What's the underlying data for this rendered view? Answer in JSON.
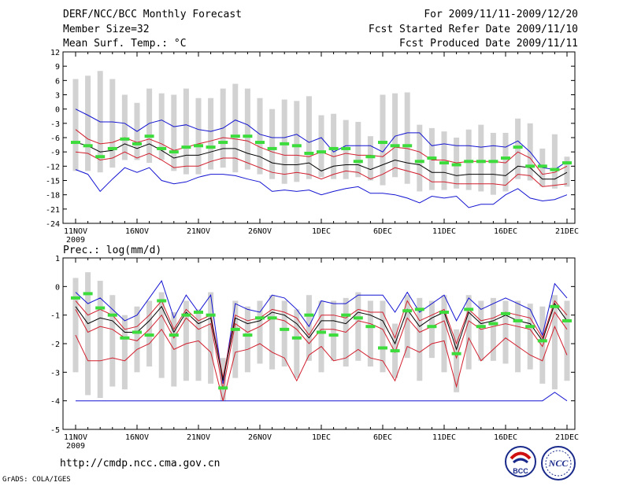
{
  "header": {
    "title": "DERF/NCC/BCC Monthly Forecast",
    "member_size": "Member Size=32",
    "variable": "Mean Surf. Temp.: °C",
    "period": "For 2009/11/11-2009/12/20",
    "start_date": "Fcst Started Refer Date 2009/11/10",
    "produced_date": "Fcst Produced Date 2009/11/11"
  },
  "footer": {
    "url": "http://cmdp.ncc.cma.gov.cn",
    "credit": "GrADS: COLA/IGES",
    "logo_bcc": "BCC",
    "logo_ncc": "NCC"
  },
  "colors": {
    "box": "#d2d2d2",
    "mean": "#000000",
    "inner": "#d21e2d",
    "outer": "#1414d2",
    "obs": "#3cdc3c"
  },
  "chart_data": [
    {
      "type": "box-line",
      "name": "Mean Surface Temperature",
      "title": "Mean Surf. Temp.: °C",
      "ylabel": "°C",
      "ylim": [
        -24,
        12
      ],
      "yticks": [
        "12",
        "9",
        "6",
        "3",
        "0",
        "-3",
        "-6",
        "-9",
        "-12",
        "-15",
        "-18",
        "-21",
        "-24"
      ],
      "xtick_labels": [
        "11NOV",
        "16NOV",
        "21NOV",
        "26NOV",
        "1DEC",
        "6DEC",
        "11DEC",
        "16DEC",
        "21DEC"
      ],
      "xtick_day_index": [
        0,
        5,
        10,
        15,
        20,
        25,
        30,
        35,
        40
      ],
      "year_label": "2009",
      "days": 40,
      "series": [
        {
          "name": "box_high",
          "values": [
            6.3,
            7,
            8,
            6.3,
            3,
            1.3,
            4.3,
            3.3,
            3,
            4.3,
            2.3,
            2.3,
            4.3,
            5.3,
            4.3,
            2.3,
            0,
            2,
            1.7,
            2.7,
            -1.3,
            -1,
            -2.3,
            -2.7,
            -5.7,
            3,
            3.3,
            3.5,
            -3.3,
            -4,
            -4.7,
            -6,
            -4.3,
            -3.3,
            -5,
            -5,
            -2,
            -3,
            -8.3,
            -5.3,
            -10
          ]
        },
        {
          "name": "box_low",
          "values": [
            -13,
            -13,
            -13.3,
            -12.3,
            -10.7,
            -10.7,
            -11.3,
            -10.7,
            -13,
            -13.7,
            -13.7,
            -12.7,
            -12.3,
            -13.3,
            -12.7,
            -13.7,
            -14.7,
            -15.7,
            -15.3,
            -14.7,
            -14.3,
            -14.7,
            -14.7,
            -14.3,
            -15,
            -16,
            -14.3,
            -15.7,
            -17.3,
            -17,
            -17,
            -16.7,
            -17,
            -17.3,
            -18,
            -17.3,
            -14.7,
            -15,
            -16.3,
            -16.7,
            -16.3
          ]
        },
        {
          "name": "upper_bound",
          "values": [
            0,
            -1.3,
            -2.7,
            -2.7,
            -3,
            -4.7,
            -3,
            -2.3,
            -3.7,
            -3.3,
            -4.3,
            -4.7,
            -4,
            -2.3,
            -3.3,
            -5.3,
            -6,
            -6,
            -5.3,
            -7,
            -6,
            -9,
            -7.7,
            -7.7,
            -7.7,
            -9,
            -5.7,
            -5,
            -5,
            -7.7,
            -7.3,
            -7.7,
            -7.7,
            -8,
            -7.7,
            -8,
            -6.7,
            -9,
            -12.3,
            -12.7,
            -11
          ]
        },
        {
          "name": "inner_upper",
          "values": [
            -4.3,
            -6.3,
            -7.3,
            -7,
            -6,
            -7,
            -6.3,
            -7.3,
            -8.7,
            -8,
            -7.3,
            -6.7,
            -6,
            -6.3,
            -6.7,
            -8,
            -9,
            -9.7,
            -9.7,
            -10,
            -9,
            -10,
            -9.3,
            -9.7,
            -9.7,
            -10,
            -8,
            -8.3,
            -9,
            -10.7,
            -10.7,
            -11.3,
            -11,
            -11,
            -11,
            -11.3,
            -9,
            -10.3,
            -13.7,
            -13.3,
            -12
          ]
        },
        {
          "name": "mean",
          "values": [
            -7,
            -7.7,
            -9,
            -8.7,
            -7.3,
            -8.3,
            -7.3,
            -8.7,
            -10.3,
            -9.7,
            -9.7,
            -9,
            -8.3,
            -8.3,
            -9.3,
            -10,
            -11.3,
            -11.7,
            -11.7,
            -11.3,
            -13,
            -12,
            -11.7,
            -11.7,
            -12.7,
            -11.7,
            -10.7,
            -11.3,
            -11.7,
            -13.3,
            -13.3,
            -14,
            -13.7,
            -13.7,
            -13.7,
            -14,
            -12,
            -12.3,
            -14.7,
            -14.7,
            -13.3
          ]
        },
        {
          "name": "inner_lower",
          "values": [
            -9,
            -9.3,
            -10.7,
            -10.3,
            -9,
            -10.3,
            -9.3,
            -10.7,
            -12.3,
            -12,
            -12,
            -11,
            -10.3,
            -10.3,
            -11.3,
            -12.3,
            -13.3,
            -13.7,
            -13.3,
            -13.7,
            -14.7,
            -13.7,
            -13,
            -13.3,
            -14.7,
            -13.7,
            -12.3,
            -13,
            -13.7,
            -15.3,
            -15.3,
            -15.7,
            -15.7,
            -15.7,
            -15.7,
            -16,
            -13.7,
            -14,
            -16.3,
            -16,
            -15.7
          ]
        },
        {
          "name": "lower_bound",
          "values": [
            -12.7,
            -13.7,
            -17.3,
            -14.7,
            -12.3,
            -13.3,
            -12.3,
            -15,
            -15.7,
            -15.3,
            -14.3,
            -13.7,
            -13.7,
            -14,
            -14.7,
            -15.3,
            -17.3,
            -17,
            -17.3,
            -17,
            -18,
            -17.3,
            -16.7,
            -16.3,
            -17.7,
            -17.7,
            -18,
            -18.7,
            -19.7,
            -18.3,
            -18.7,
            -18.3,
            -20.7,
            -20,
            -20,
            -18,
            -16.7,
            -18.7,
            -19.3,
            -19,
            -18
          ]
        },
        {
          "name": "observed",
          "values": [
            -7,
            -7.7,
            -10,
            -8.3,
            -6.3,
            -7.3,
            -5.7,
            -8.3,
            -9,
            -8,
            -7.7,
            -8,
            -7,
            -5.7,
            -5.7,
            -7,
            -8.3,
            -7.3,
            -7.7,
            -9.3,
            -9,
            -8.3,
            -8.3,
            -11,
            -10,
            -7,
            -7.7,
            -7.7,
            -11,
            -10.3,
            -11.3,
            -11.7,
            -11,
            -11,
            -11,
            -10.3,
            -8,
            -12,
            -12,
            -12.7,
            -11.3
          ]
        }
      ]
    },
    {
      "type": "box-line",
      "name": "Precipitation",
      "title": "Prec.: log(mm/d)",
      "ylabel": "log(mm/d)",
      "ylim": [
        -5,
        1
      ],
      "yticks": [
        "1",
        "0",
        "-1",
        "-2",
        "-3",
        "-4",
        "-5"
      ],
      "xtick_labels": [
        "11NOV",
        "16NOV",
        "21NOV",
        "26NOV",
        "1DEC",
        "6DEC",
        "11DEC",
        "16DEC",
        "21DEC"
      ],
      "xtick_day_index": [
        0,
        5,
        10,
        15,
        20,
        25,
        30,
        35,
        40
      ],
      "year_label": "2009",
      "days": 40,
      "series": [
        {
          "name": "box_high",
          "values": [
            0.3,
            0.5,
            0.2,
            -0.3,
            -1,
            -0.7,
            -0.5,
            -0.2,
            -0.9,
            -0.5,
            -0.8,
            -0.2,
            -2.5,
            -0.5,
            -0.7,
            -0.5,
            -0.3,
            -0.5,
            -0.8,
            -0.3,
            -0.5,
            -0.5,
            -0.4,
            -0.2,
            -0.5,
            -0.5,
            -1.3,
            -0.3,
            -0.4,
            -0.5,
            -0.3,
            -1.5,
            -0.3,
            -0.5,
            -0.4,
            -0.5,
            -0.5,
            -0.6,
            -0.7,
            -0.3,
            -0.5
          ]
        },
        {
          "name": "box_low",
          "values": [
            -3,
            -3.8,
            -3.9,
            -3.5,
            -3.6,
            -3,
            -2.8,
            -3.2,
            -3.5,
            -3.3,
            -3.3,
            -3.4,
            -4,
            -3.2,
            -3,
            -2.7,
            -2.9,
            -2.8,
            -3.2,
            -2.6,
            -3,
            -2.6,
            -2.8,
            -2.6,
            -2.8,
            -3,
            -3.2,
            -2.5,
            -3.3,
            -2.5,
            -3,
            -3.7,
            -2.9,
            -2.6,
            -2.6,
            -2.7,
            -3,
            -2.9,
            -3.4,
            -3.6,
            -3.3
          ]
        },
        {
          "name": "upper_bound",
          "values": [
            -0.2,
            -0.6,
            -0.4,
            -0.8,
            -1.2,
            -1,
            -0.4,
            0.2,
            -1.1,
            -0.3,
            -0.9,
            -0.3,
            -3.4,
            -0.6,
            -0.8,
            -0.9,
            -0.3,
            -0.4,
            -0.8,
            -1.4,
            -0.5,
            -0.6,
            -0.6,
            -0.3,
            -0.3,
            -0.3,
            -0.9,
            -0.2,
            -0.9,
            -0.6,
            -0.3,
            -1.2,
            -0.4,
            -0.8,
            -0.6,
            -0.4,
            -0.6,
            -0.8,
            -1.7,
            0.1,
            -0.4
          ]
        },
        {
          "name": "inner_upper",
          "values": [
            -0.5,
            -1,
            -0.8,
            -1,
            -1.5,
            -1.4,
            -1,
            -0.5,
            -1.5,
            -0.8,
            -1.2,
            -1,
            -3.2,
            -1,
            -1.2,
            -1.1,
            -0.8,
            -0.9,
            -1.1,
            -1.7,
            -1,
            -1,
            -1.1,
            -0.8,
            -0.9,
            -0.9,
            -1.8,
            -0.5,
            -1.2,
            -1,
            -0.8,
            -2,
            -0.8,
            -1.2,
            -1.1,
            -0.9,
            -1,
            -1.1,
            -1.8,
            -0.5,
            -1
          ]
        },
        {
          "name": "mean",
          "values": [
            -0.7,
            -1.3,
            -1.1,
            -1.2,
            -1.6,
            -1.6,
            -1.2,
            -0.7,
            -1.6,
            -0.9,
            -1.3,
            -1.1,
            -3.3,
            -1.1,
            -1.3,
            -1.2,
            -0.9,
            -1,
            -1.3,
            -1.8,
            -1.2,
            -1.2,
            -1.3,
            -0.9,
            -1,
            -1.2,
            -2,
            -0.8,
            -1.4,
            -1.1,
            -0.9,
            -2.2,
            -0.9,
            -1.3,
            -1.2,
            -1,
            -1.2,
            -1.3,
            -1.9,
            -0.6,
            -1.2
          ]
        },
        {
          "name": "inner_lower",
          "values": [
            -0.8,
            -1.6,
            -1.4,
            -1.5,
            -1.8,
            -1.9,
            -1.5,
            -1,
            -1.8,
            -1.1,
            -1.5,
            -1.3,
            -3.6,
            -1.3,
            -1.6,
            -1.4,
            -1.1,
            -1.2,
            -1.5,
            -2,
            -1.5,
            -1.5,
            -1.6,
            -1.2,
            -1.3,
            -1.5,
            -2.3,
            -1.1,
            -1.6,
            -1.4,
            -1.2,
            -2.5,
            -1.2,
            -1.5,
            -1.4,
            -1.3,
            -1.4,
            -1.5,
            -2.1,
            -0.9,
            -1.5
          ]
        },
        {
          "name": "lower_bound",
          "values": [
            -1.7,
            -2.6,
            -2.6,
            -2.5,
            -2.6,
            -2.2,
            -2,
            -1.5,
            -2.2,
            -2,
            -1.9,
            -2.3,
            -4,
            -2.3,
            -2.2,
            -2,
            -2.3,
            -2.5,
            -3.3,
            -2.4,
            -2.1,
            -2.6,
            -2.5,
            -2.2,
            -2.5,
            -2.6,
            -3.3,
            -2.1,
            -2.3,
            -2,
            -1.9,
            -3.5,
            -1.8,
            -2.6,
            -2.2,
            -1.8,
            -2.1,
            -2.4,
            -2.6,
            -1.4,
            -2.4
          ]
        },
        {
          "name": "lowest_bound",
          "values": [
            -4,
            -4,
            -4,
            -4,
            -4,
            -4,
            -4,
            -4,
            -4,
            -4,
            -4,
            -4,
            -4,
            -4,
            -4,
            -4,
            -4,
            -4,
            -4,
            -4,
            -4,
            -4,
            -4,
            -4,
            -4,
            -4,
            -4,
            -4,
            -4,
            -4,
            -4,
            -4,
            -4,
            -4,
            -4,
            -4,
            -4,
            -4,
            -4,
            -3.7,
            -4
          ]
        },
        {
          "name": "observed",
          "values": [
            -0.4,
            -0.25,
            -0.75,
            -1,
            -1.8,
            -1.6,
            -1.7,
            -0.5,
            -1.7,
            -1,
            -0.9,
            -1,
            -3.55,
            -1.5,
            -1.7,
            -1.1,
            -1.1,
            -1.5,
            -1.8,
            -1,
            -1.6,
            -1.7,
            -1,
            -1.1,
            -1.4,
            -2.15,
            -2.25,
            -0.85,
            -0.8,
            -1.4,
            -0.9,
            -2.35,
            -0.8,
            -1.4,
            -1.3,
            -0.95,
            -1.2,
            -1.4,
            -1.9,
            -0.7,
            -1.2
          ]
        }
      ]
    }
  ]
}
